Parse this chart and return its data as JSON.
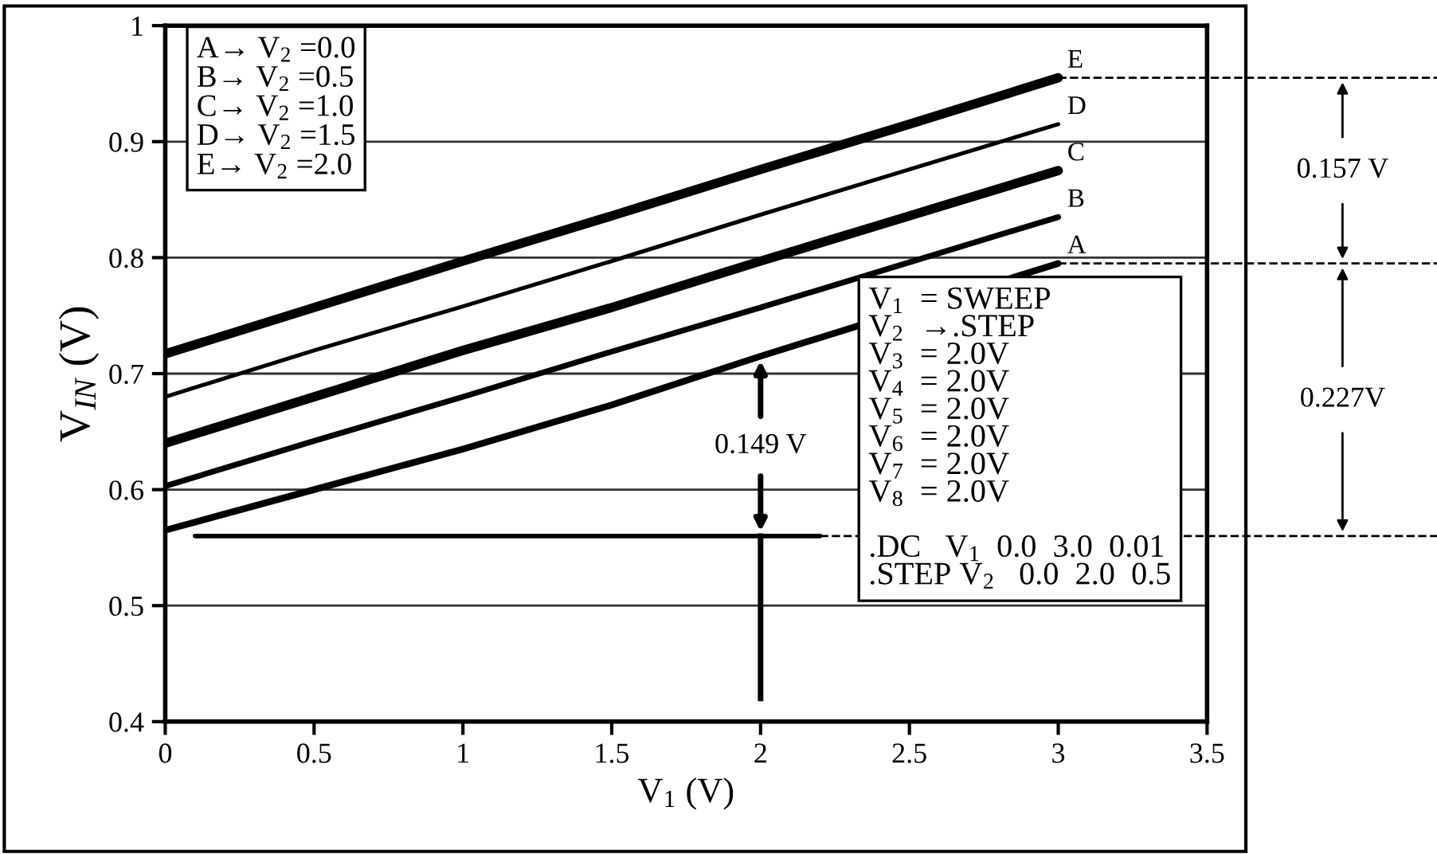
{
  "chart_data": {
    "type": "line",
    "xlabel": "V$_{1}$ (V)",
    "ylabel": "V$_{IN}$ (V)",
    "x": [
      0,
      0.5,
      1,
      1.5,
      2,
      2.5,
      3
    ],
    "series": [
      {
        "name": "A",
        "color": "#000000",
        "x": [
          0,
          0.5,
          1,
          1.5,
          2,
          2.3,
          3
        ],
        "values": [
          0.565,
          0.6,
          0.635,
          0.673,
          0.715,
          0.739,
          0.795
        ]
      },
      {
        "name": "B",
        "color": "#000000",
        "values": [
          0.603,
          0.642,
          0.68,
          0.719,
          0.757,
          0.796,
          0.835
        ]
      },
      {
        "name": "C",
        "color": "#000000",
        "values": [
          0.64,
          0.68,
          0.72,
          0.757,
          0.797,
          0.836,
          0.875
        ]
      },
      {
        "name": "D",
        "color": "#000000",
        "values": [
          0.68,
          0.72,
          0.758,
          0.797,
          0.837,
          0.876,
          0.915
        ]
      },
      {
        "name": "E",
        "color": "#000000",
        "values": [
          0.717,
          0.757,
          0.797,
          0.836,
          0.876,
          0.915,
          0.955
        ]
      },
      {
        "color": "#000000",
        "x": [
          0.1,
          2.2
        ],
        "values": [
          0.56,
          0.56
        ]
      }
    ],
    "xlim": [
      0,
      3.5
    ],
    "xticks": [
      0,
      0.5,
      1,
      1.5,
      2,
      2.5,
      3,
      3.5
    ],
    "ylim": [
      0.4,
      1
    ],
    "yticks": [
      0.4,
      0.5,
      0.6,
      0.7,
      0.8,
      0.9,
      1
    ],
    "grid": "y",
    "marker": "none",
    "line_style": "solid",
    "ref_lines": [
      {
        "axis": "y",
        "value": 0.56,
        "line_style": "dashed"
      },
      {
        "axis": "y",
        "value": 0.795,
        "line_style": "dashed"
      },
      {
        "axis": "y",
        "value": 0.955,
        "line_style": "dashed"
      }
    ],
    "annotations": [
      "A→ V$_{2}$ =0.0\nB→ V$_{2}$ =0.5\nC→ V$_{2}$ =1.0\nD→ V$_{2}$ =1.5\nE→ V$_{2}$ =2.0",
      "V$_{1}$  = SWEEP\nV$_{2}$  →.STEP\nV$_{3}$  = 2.0V\nV$_{4}$  = 2.0V\nV$_{5}$  = 2.0V\nV$_{6}$  = 2.0V\nV$_{7}$  = 2.0V\nV$_{8}$  = 2.0V\n\n.DC   V$_{1}$  0.0  3.0  0.01\n.STEP V$_{2}$   0.0  2.0  0.5",
      "0.149 V",
      "0.157 V",
      "0.227V"
    ]
  }
}
